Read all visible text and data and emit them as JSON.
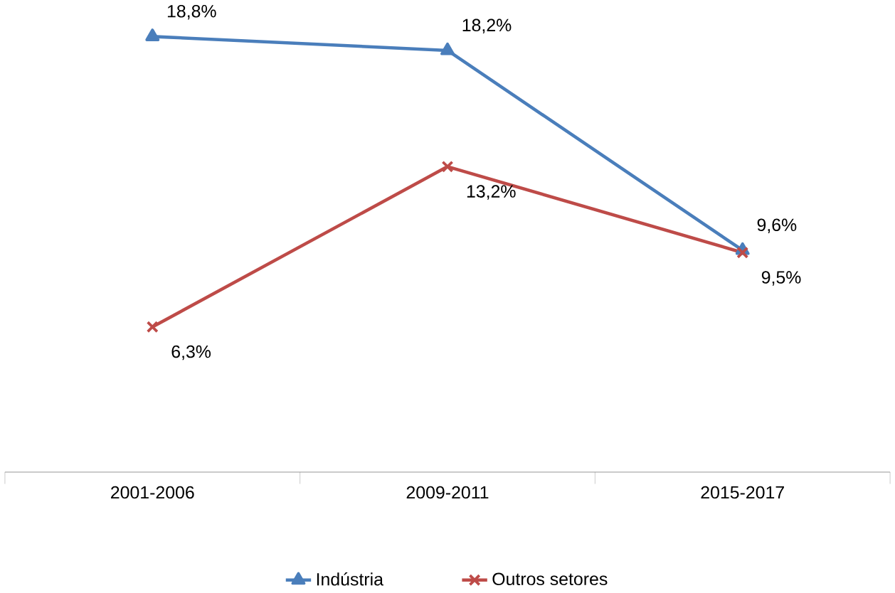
{
  "chart_data": {
    "type": "line",
    "categories": [
      "2001-2006",
      "2009-2011",
      "2015-2017"
    ],
    "legend": "bottom",
    "grid": false,
    "tick_labels": "x",
    "series": [
      {
        "name": "Indústria",
        "color": "#4a7ebb",
        "marker": "triangle",
        "values": [
          18.8,
          18.2,
          9.6
        ],
        "value_labels": [
          "18,8%",
          "18,2%",
          "9,6%"
        ]
      },
      {
        "name": "Outros setores",
        "color": "#be4b48",
        "marker": "cross",
        "values": [
          6.3,
          13.2,
          9.5
        ],
        "value_labels": [
          "6,3%",
          "13,2%",
          "9,5%"
        ]
      }
    ]
  }
}
